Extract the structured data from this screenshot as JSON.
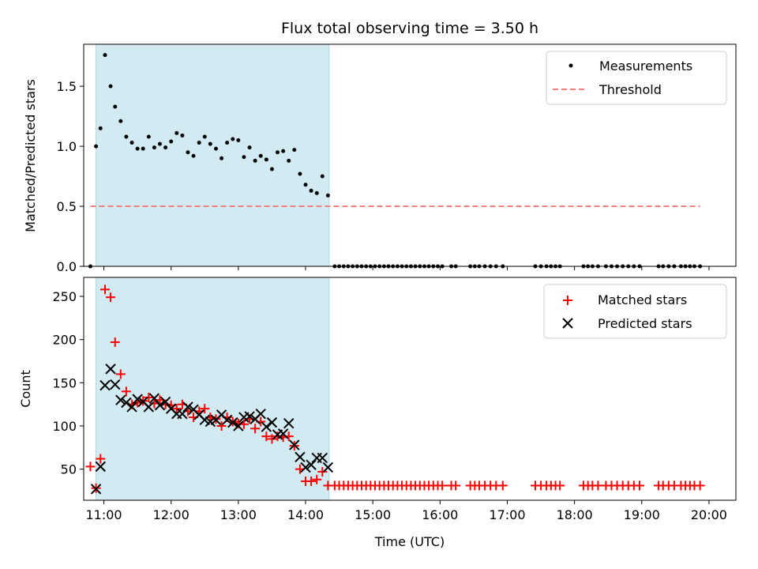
{
  "title": "Flux total observing time = 3.50 h",
  "colors": {
    "shade": "#add8e6",
    "threshold": "#f08080",
    "matched": "#ff0000",
    "predicted": "#000000",
    "measurement": "#000000"
  },
  "chart_data": [
    {
      "type": "scatter",
      "ylabel": "Matched/Predicted stars",
      "xlim": [
        10.7,
        20.4
      ],
      "ylim": [
        0.0,
        1.85
      ],
      "yticks": [
        0.0,
        0.5,
        1.0,
        1.5
      ],
      "ytick_labels": [
        "0.0",
        "0.5",
        "1.0",
        "1.5"
      ],
      "legend_position": "top-right",
      "shaded_region": {
        "x_start": 10.883,
        "x_end": 14.35
      },
      "series": [
        {
          "name": "Measurements",
          "marker": "dot",
          "x": [
            10.8,
            10.883,
            10.95,
            11.017,
            11.1,
            11.167,
            11.25,
            11.333,
            11.417,
            11.5,
            11.583,
            11.667,
            11.75,
            11.833,
            11.917,
            12.0,
            12.083,
            12.167,
            12.25,
            12.333,
            12.417,
            12.5,
            12.583,
            12.667,
            12.75,
            12.833,
            12.917,
            13.0,
            13.083,
            13.167,
            13.25,
            13.333,
            13.417,
            13.5,
            13.583,
            13.667,
            13.75,
            13.833,
            13.917,
            14.0,
            14.083,
            14.167,
            14.25,
            14.333,
            14.433,
            14.5,
            14.567,
            14.633,
            14.7,
            14.767,
            14.833,
            14.9,
            14.967,
            15.033,
            15.1,
            15.167,
            15.233,
            15.3,
            15.367,
            15.433,
            15.5,
            15.567,
            15.633,
            15.7,
            15.767,
            15.833,
            15.9,
            15.967,
            16.033,
            16.167,
            16.233,
            16.45,
            16.517,
            16.583,
            16.667,
            16.75,
            16.833,
            16.933,
            17.417,
            17.5,
            17.583,
            17.65,
            17.717,
            17.783,
            18.133,
            18.2,
            18.267,
            18.35,
            18.467,
            18.55,
            18.633,
            18.717,
            18.8,
            18.883,
            18.967,
            19.25,
            19.317,
            19.4,
            19.483,
            19.583,
            19.65,
            19.717,
            19.783,
            19.867
          ],
          "y": [
            0.0,
            1.0,
            1.15,
            1.76,
            1.5,
            1.33,
            1.21,
            1.08,
            1.03,
            0.98,
            0.98,
            1.08,
            0.99,
            1.02,
            0.99,
            1.04,
            1.11,
            1.09,
            0.95,
            0.92,
            1.03,
            1.08,
            1.02,
            0.98,
            0.9,
            1.03,
            1.06,
            1.05,
            0.91,
            0.99,
            0.88,
            0.92,
            0.89,
            0.81,
            0.95,
            0.96,
            0.88,
            0.97,
            0.77,
            0.68,
            0.63,
            0.61,
            0.75,
            0.59,
            0.0,
            0.0,
            0.0,
            0.0,
            0.0,
            0.0,
            0.0,
            0.0,
            0.0,
            0.0,
            0.0,
            0.0,
            0.0,
            0.0,
            0.0,
            0.0,
            0.0,
            0.0,
            0.0,
            0.0,
            0.0,
            0.0,
            0.0,
            0.0,
            0.0,
            0.0,
            0.0,
            0.0,
            0.0,
            0.0,
            0.0,
            0.0,
            0.0,
            0.0,
            0.0,
            0.0,
            0.0,
            0.0,
            0.0,
            0.0,
            0.0,
            0.0,
            0.0,
            0.0,
            0.0,
            0.0,
            0.0,
            0.0,
            0.0,
            0.0,
            0.0,
            0.0,
            0.0,
            0.0,
            0.0,
            0.0,
            0.0,
            0.0,
            0.0,
            0.0
          ]
        },
        {
          "name": "Threshold",
          "marker": "dashed-line",
          "x": [
            10.8,
            19.867
          ],
          "y": [
            0.5,
            0.5
          ]
        }
      ]
    },
    {
      "type": "scatter",
      "xlabel": "Time (UTC)",
      "ylabel": "Count",
      "xlim": [
        10.7,
        20.4
      ],
      "ylim": [
        14,
        272
      ],
      "yticks": [
        50,
        100,
        150,
        200,
        250
      ],
      "ytick_labels": [
        "50",
        "100",
        "150",
        "200",
        "250"
      ],
      "xticks": [
        11,
        12,
        13,
        14,
        15,
        16,
        17,
        18,
        19,
        20
      ],
      "xtick_labels": [
        "11:00",
        "12:00",
        "13:00",
        "14:00",
        "15:00",
        "16:00",
        "17:00",
        "18:00",
        "19:00",
        "20:00"
      ],
      "legend_position": "top-right",
      "shaded_region": {
        "x_start": 10.883,
        "x_end": 14.35
      },
      "series": [
        {
          "name": "Matched stars",
          "marker": "plus",
          "x": [
            10.8,
            10.883,
            10.95,
            11.017,
            11.1,
            11.167,
            11.25,
            11.333,
            11.417,
            11.5,
            11.583,
            11.667,
            11.75,
            11.833,
            11.917,
            12.0,
            12.083,
            12.167,
            12.25,
            12.333,
            12.417,
            12.5,
            12.583,
            12.667,
            12.75,
            12.833,
            12.917,
            13.0,
            13.083,
            13.167,
            13.25,
            13.333,
            13.417,
            13.5,
            13.583,
            13.667,
            13.75,
            13.833,
            13.917,
            14.0,
            14.083,
            14.167,
            14.25,
            14.333,
            14.433,
            14.5,
            14.567,
            14.633,
            14.7,
            14.767,
            14.833,
            14.9,
            14.967,
            15.033,
            15.1,
            15.167,
            15.233,
            15.3,
            15.367,
            15.433,
            15.5,
            15.567,
            15.633,
            15.7,
            15.767,
            15.833,
            15.9,
            15.967,
            16.033,
            16.167,
            16.233,
            16.45,
            16.517,
            16.583,
            16.667,
            16.75,
            16.833,
            16.933,
            17.417,
            17.5,
            17.583,
            17.65,
            17.717,
            17.783,
            18.133,
            18.2,
            18.267,
            18.35,
            18.467,
            18.55,
            18.633,
            18.717,
            18.8,
            18.883,
            18.967,
            19.25,
            19.317,
            19.4,
            19.483,
            19.583,
            19.65,
            19.717,
            19.783,
            19.867
          ],
          "y": [
            53,
            28,
            62,
            258,
            249,
            197,
            160,
            140,
            125,
            127,
            129,
            133,
            126,
            130,
            125,
            124,
            120,
            125,
            117,
            110,
            117,
            120,
            110,
            108,
            100,
            110,
            105,
            103,
            102,
            108,
            97,
            105,
            88,
            85,
            88,
            87,
            88,
            77,
            50,
            36,
            36,
            38,
            47,
            31,
            31,
            31,
            31,
            31,
            31,
            31,
            31,
            31,
            31,
            31,
            31,
            31,
            31,
            31,
            31,
            31,
            31,
            31,
            31,
            31,
            31,
            31,
            31,
            31,
            31,
            31,
            31,
            31,
            31,
            31,
            31,
            31,
            31,
            31,
            31,
            31,
            31,
            31,
            31,
            31,
            31,
            31,
            31,
            31,
            31,
            31,
            31,
            31,
            31,
            31,
            31,
            31,
            31,
            31,
            31,
            31,
            31,
            31,
            31,
            31
          ]
        },
        {
          "name": "Predicted stars",
          "marker": "x",
          "x": [
            10.883,
            10.95,
            11.017,
            11.1,
            11.167,
            11.25,
            11.333,
            11.417,
            11.5,
            11.583,
            11.667,
            11.75,
            11.833,
            11.917,
            12.0,
            12.083,
            12.167,
            12.25,
            12.333,
            12.417,
            12.5,
            12.583,
            12.667,
            12.75,
            12.833,
            12.917,
            13.0,
            13.083,
            13.167,
            13.25,
            13.333,
            13.417,
            13.5,
            13.583,
            13.667,
            13.75,
            13.833,
            13.917,
            14.0,
            14.083,
            14.167,
            14.25,
            14.333
          ],
          "y": [
            27,
            53,
            147,
            166,
            148,
            130,
            127,
            122,
            131,
            128,
            122,
            132,
            124,
            128,
            120,
            114,
            114,
            122,
            119,
            113,
            107,
            105,
            107,
            113,
            107,
            104,
            100,
            110,
            111,
            108,
            114,
            99,
            104,
            90,
            91,
            103,
            78,
            64,
            52,
            55,
            63,
            63,
            52
          ]
        }
      ]
    }
  ]
}
